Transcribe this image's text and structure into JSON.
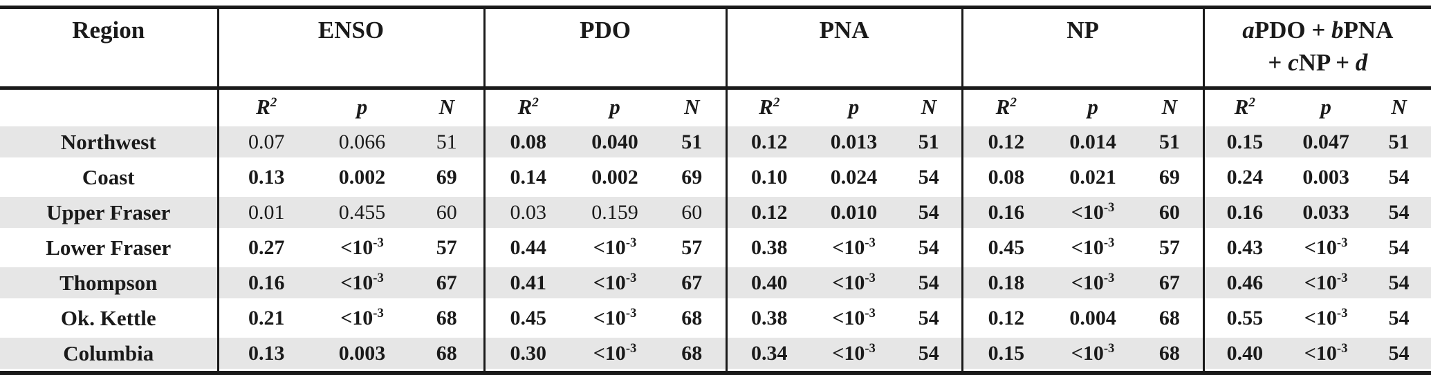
{
  "table": {
    "region_header": "Region",
    "groups": [
      {
        "id": "enso",
        "label": "ENSO"
      },
      {
        "id": "pdo",
        "label": "PDO"
      },
      {
        "id": "pna",
        "label": "PNA"
      },
      {
        "id": "np",
        "label": "NP"
      },
      {
        "id": "model",
        "label_lines": [
          [
            {
              "text": "a",
              "italic": true
            },
            {
              "text": "PDO + ",
              "italic": false
            },
            {
              "text": "b",
              "italic": true
            },
            {
              "text": "PNA",
              "italic": false
            }
          ],
          [
            {
              "text": "+ ",
              "italic": false
            },
            {
              "text": "c",
              "italic": true
            },
            {
              "text": "NP + ",
              "italic": false
            },
            {
              "text": "d",
              "italic": true
            }
          ]
        ]
      }
    ],
    "subheader": {
      "r2": "R^2",
      "p": "p",
      "n": "N"
    },
    "rows": [
      {
        "region": "Northwest",
        "shaded": true,
        "groups": [
          {
            "r2": "0.07",
            "p": "0.066",
            "n": "51",
            "bold": false
          },
          {
            "r2": "0.08",
            "p": "0.040",
            "n": "51",
            "bold": true
          },
          {
            "r2": "0.12",
            "p": "0.013",
            "n": "51",
            "bold": true
          },
          {
            "r2": "0.12",
            "p": "0.014",
            "n": "51",
            "bold": true
          },
          {
            "r2": "0.15",
            "p": "0.047",
            "n": "51",
            "bold": true
          }
        ]
      },
      {
        "region": "Coast",
        "shaded": false,
        "groups": [
          {
            "r2": "0.13",
            "p": "0.002",
            "n": "69",
            "bold": true
          },
          {
            "r2": "0.14",
            "p": "0.002",
            "n": "69",
            "bold": true
          },
          {
            "r2": "0.10",
            "p": "0.024",
            "n": "54",
            "bold": true
          },
          {
            "r2": "0.08",
            "p": "0.021",
            "n": "69",
            "bold": true
          },
          {
            "r2": "0.24",
            "p": "0.003",
            "n": "54",
            "bold": true
          }
        ]
      },
      {
        "region": "Upper Fraser",
        "shaded": true,
        "groups": [
          {
            "r2": "0.01",
            "p": "0.455",
            "n": "60",
            "bold": false
          },
          {
            "r2": "0.03",
            "p": "0.159",
            "n": "60",
            "bold": false
          },
          {
            "r2": "0.12",
            "p": "0.010",
            "n": "54",
            "bold": true
          },
          {
            "r2": "0.16",
            "p": "<10^-3",
            "n": "60",
            "bold": true
          },
          {
            "r2": "0.16",
            "p": "0.033",
            "n": "54",
            "bold": true
          }
        ]
      },
      {
        "region": "Lower Fraser",
        "shaded": false,
        "groups": [
          {
            "r2": "0.27",
            "p": "<10^-3",
            "n": "57",
            "bold": true
          },
          {
            "r2": "0.44",
            "p": "<10^-3",
            "n": "57",
            "bold": true
          },
          {
            "r2": "0.38",
            "p": "<10^-3",
            "n": "54",
            "bold": true
          },
          {
            "r2": "0.45",
            "p": "<10^-3",
            "n": "57",
            "bold": true
          },
          {
            "r2": "0.43",
            "p": "<10^-3",
            "n": "54",
            "bold": true
          }
        ]
      },
      {
        "region": "Thompson",
        "shaded": true,
        "groups": [
          {
            "r2": "0.16",
            "p": "<10^-3",
            "n": "67",
            "bold": true
          },
          {
            "r2": "0.41",
            "p": "<10^-3",
            "n": "67",
            "bold": true
          },
          {
            "r2": "0.40",
            "p": "<10^-3",
            "n": "54",
            "bold": true
          },
          {
            "r2": "0.18",
            "p": "<10^-3",
            "n": "67",
            "bold": true
          },
          {
            "r2": "0.46",
            "p": "<10^-3",
            "n": "54",
            "bold": true
          }
        ]
      },
      {
        "region": "Ok. Kettle",
        "shaded": false,
        "groups": [
          {
            "r2": "0.21",
            "p": "<10^-3",
            "n": "68",
            "bold": true
          },
          {
            "r2": "0.45",
            "p": "<10^-3",
            "n": "68",
            "bold": true
          },
          {
            "r2": "0.38",
            "p": "<10^-3",
            "n": "54",
            "bold": true
          },
          {
            "r2": "0.12",
            "p": "0.004",
            "n": "68",
            "bold": true
          },
          {
            "r2": "0.55",
            "p": "<10^-3",
            "n": "54",
            "bold": true
          }
        ]
      },
      {
        "region": "Columbia",
        "shaded": true,
        "groups": [
          {
            "r2": "0.13",
            "p": "0.003",
            "n": "68",
            "bold": true
          },
          {
            "r2": "0.30",
            "p": "<10^-3",
            "n": "68",
            "bold": true
          },
          {
            "r2": "0.34",
            "p": "<10^-3",
            "n": "54",
            "bold": true
          },
          {
            "r2": "0.15",
            "p": "<10^-3",
            "n": "68",
            "bold": true
          },
          {
            "r2": "0.40",
            "p": "<10^-3",
            "n": "54",
            "bold": true
          }
        ]
      }
    ]
  },
  "colors": {
    "text": "#1a1a1a",
    "line": "#1a1a1a",
    "row_shade": "#e6e6e6",
    "background": "#ffffff"
  }
}
